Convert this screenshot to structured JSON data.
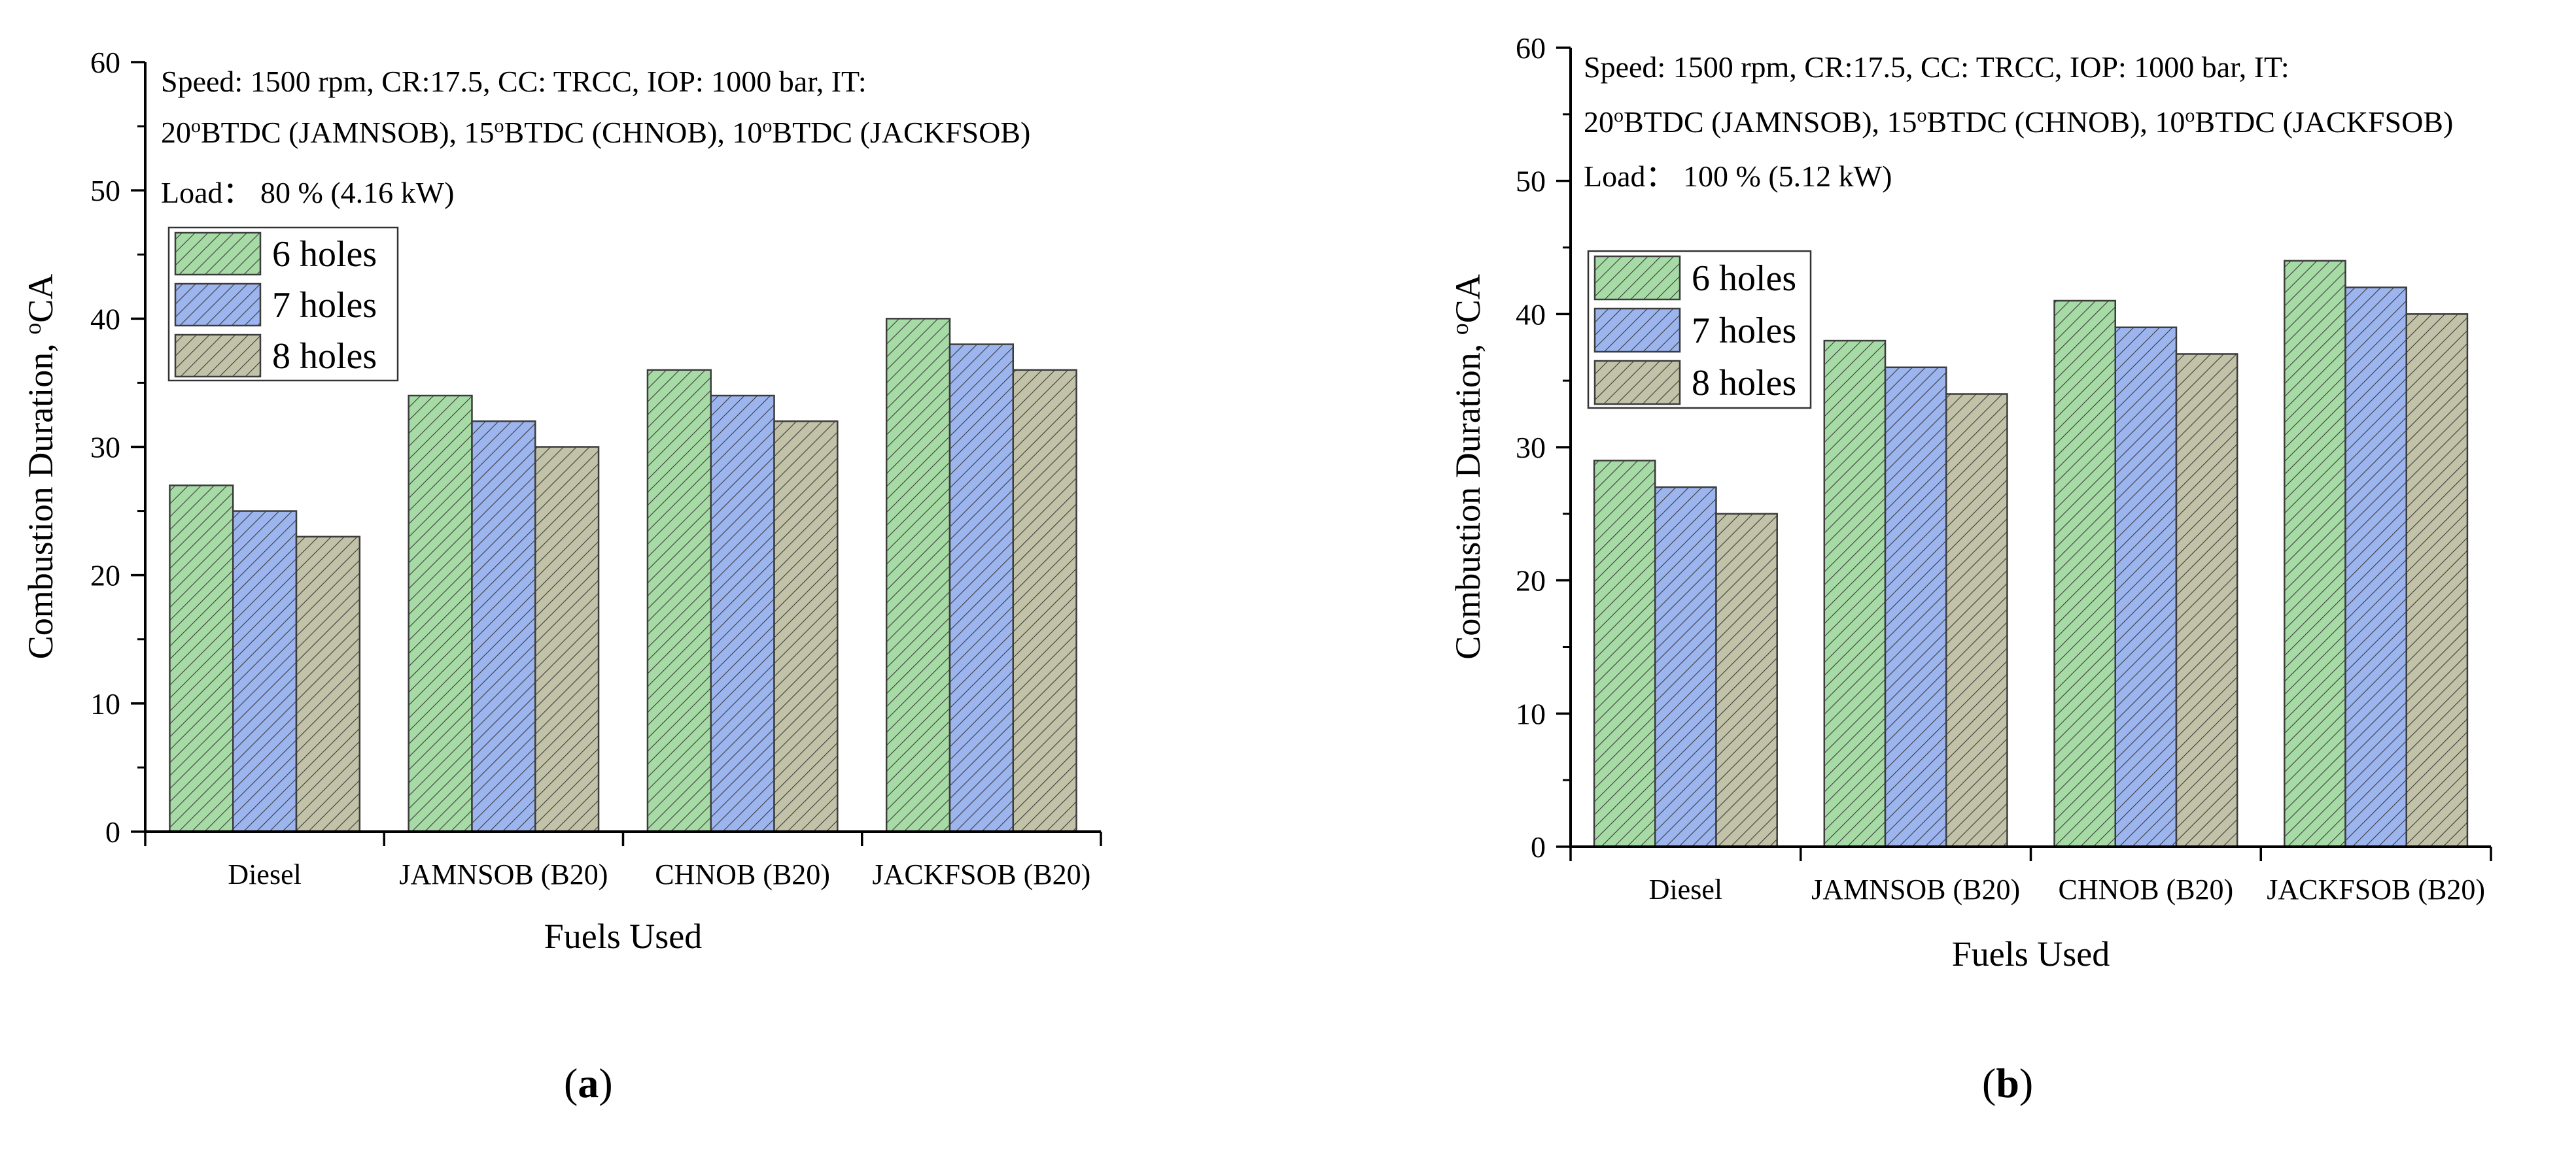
{
  "colors": {
    "series": [
      "#a7dba6",
      "#9cb5ee",
      "#c2c2a8"
    ],
    "stroke": "#3c3c3c",
    "hatch": "#3c3c3c"
  },
  "panels": [
    {
      "label_open": "(",
      "label_letter": "a",
      "label_close": ")"
    },
    {
      "label_open": "(",
      "label_letter": "b",
      "label_close": ")"
    }
  ],
  "chart_data": [
    {
      "type": "bar",
      "title": "",
      "xlabel": "Fuels Used",
      "ylabel": "Combustion Duration, °CA",
      "ylabel_main": "Combustion Duration, ",
      "ylabel_sup": "o",
      "ylabel_tail": "CA",
      "ylim": [
        0,
        60
      ],
      "yticks": [
        "0",
        "10",
        "20",
        "30",
        "40",
        "50",
        "60"
      ],
      "categories": [
        "Diesel",
        "JAMNSOB (B20)",
        "CHNOB (B20)",
        "JACKFSOB (B20)"
      ],
      "series": [
        {
          "name": "6 holes",
          "values": [
            27,
            34,
            36,
            40
          ]
        },
        {
          "name": "7 holes",
          "values": [
            25,
            32,
            34,
            38
          ]
        },
        {
          "name": "8 holes",
          "values": [
            23,
            30,
            32,
            36
          ]
        }
      ],
      "annotations": {
        "line1": "Speed: 1500 rpm, CR:17.5, CC: TRCC, IOP: 1000 bar, IT:",
        "line2_segments": [
          {
            "t": "20"
          },
          {
            "t": "o",
            "sup": true
          },
          {
            "t": "BTDC (JAMNSOB), 15"
          },
          {
            "t": "o",
            "sup": true
          },
          {
            "t": "BTDC (CHNOB), 10"
          },
          {
            "t": "o",
            "sup": true
          },
          {
            "t": "BTDC (JACKFSOB)"
          }
        ],
        "line3": "Load： 80 %  (4.16 kW)"
      },
      "legend_position": "upper-left"
    },
    {
      "type": "bar",
      "title": "",
      "xlabel": "Fuels Used",
      "ylabel": "Combustion Duration, °CA",
      "ylabel_main": "Combustion Duration, ",
      "ylabel_sup": "o",
      "ylabel_tail": "CA",
      "ylim": [
        0,
        60
      ],
      "yticks": [
        "0",
        "10",
        "20",
        "30",
        "40",
        "50",
        "60"
      ],
      "categories": [
        "Diesel",
        "JAMNSOB (B20)",
        "CHNOB (B20)",
        "JACKFSOB (B20)"
      ],
      "series": [
        {
          "name": "6 holes",
          "values": [
            29,
            38,
            41,
            44
          ]
        },
        {
          "name": "7 holes",
          "values": [
            27,
            36,
            39,
            42
          ]
        },
        {
          "name": "8 holes",
          "values": [
            25,
            34,
            37,
            40
          ]
        }
      ],
      "annotations": {
        "line1": "Speed: 1500 rpm, CR:17.5, CC: TRCC, IOP: 1000 bar, IT:",
        "line2_segments": [
          {
            "t": "20"
          },
          {
            "t": "o",
            "sup": true
          },
          {
            "t": "BTDC (JAMNSOB), 15"
          },
          {
            "t": "o",
            "sup": true
          },
          {
            "t": "BTDC (CHNOB), 10"
          },
          {
            "t": "o",
            "sup": true
          },
          {
            "t": "BTDC (JACKFSOB)"
          }
        ],
        "line3": "Load： 100 %  (5.12 kW)"
      },
      "legend_position": "upper-left"
    }
  ]
}
